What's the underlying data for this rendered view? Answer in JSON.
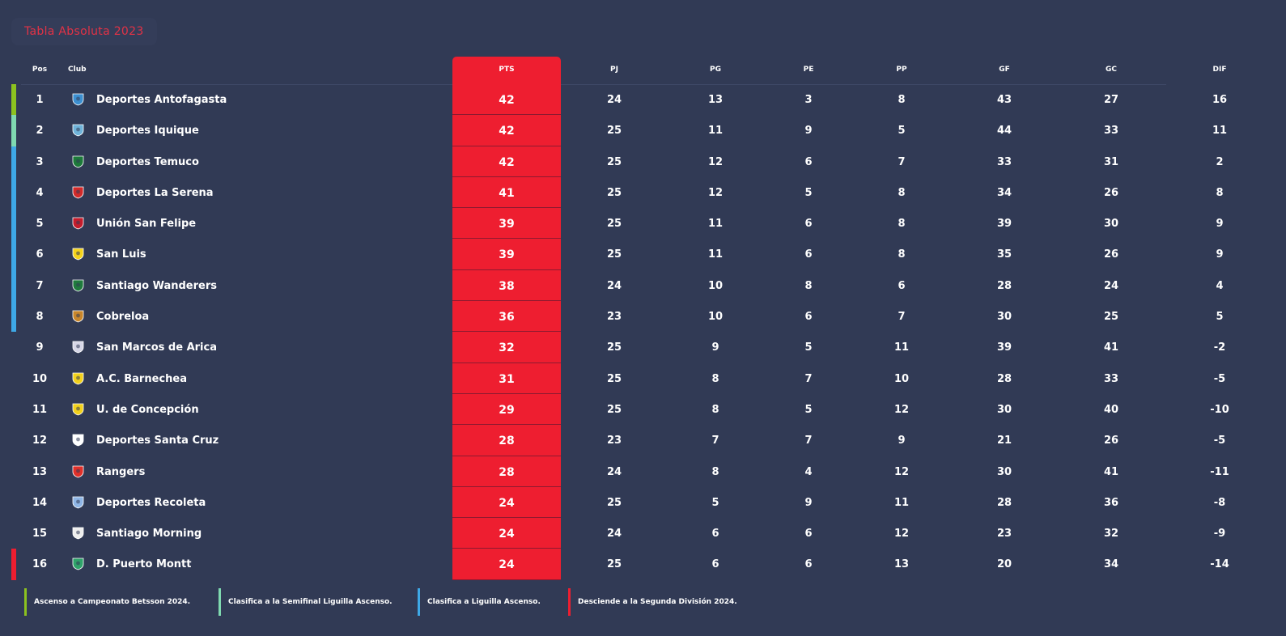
{
  "title": "Tabla Absoluta 2023",
  "headers": {
    "pos": "Pos",
    "club": "Club",
    "pts": "PTS",
    "pj": "PJ",
    "pg": "PG",
    "pe": "PE",
    "pp": "PP",
    "gf": "GF",
    "gc": "GC",
    "dif": "DIF"
  },
  "colors": {
    "accent": "#ee1e30",
    "background": "#313a55",
    "zone_ascenso": "#8cc21f",
    "zone_semifinal": "#7fd9b0",
    "zone_liguilla": "#3ea8e6",
    "zone_descenso": "#ee1e30"
  },
  "rows": [
    {
      "pos": "1",
      "club": "Deportes Antofagasta",
      "icon": "deportes-antofagasta-crest-icon",
      "pts": "42",
      "pj": "24",
      "pg": "13",
      "pe": "3",
      "pp": "8",
      "gf": "43",
      "gc": "27",
      "dif": "16",
      "zone": "ascenso"
    },
    {
      "pos": "2",
      "club": "Deportes Iquique",
      "icon": "deportes-iquique-crest-icon",
      "pts": "42",
      "pj": "25",
      "pg": "11",
      "pe": "9",
      "pp": "5",
      "gf": "44",
      "gc": "33",
      "dif": "11",
      "zone": "semifinal"
    },
    {
      "pos": "3",
      "club": "Deportes Temuco",
      "icon": "deportes-temuco-crest-icon",
      "pts": "42",
      "pj": "25",
      "pg": "12",
      "pe": "6",
      "pp": "7",
      "gf": "33",
      "gc": "31",
      "dif": "2",
      "zone": "liguilla"
    },
    {
      "pos": "4",
      "club": "Deportes La Serena",
      "icon": "deportes-la-serena-crest-icon",
      "pts": "41",
      "pj": "25",
      "pg": "12",
      "pe": "5",
      "pp": "8",
      "gf": "34",
      "gc": "26",
      "dif": "8",
      "zone": "liguilla"
    },
    {
      "pos": "5",
      "club": "Unión San Felipe",
      "icon": "union-san-felipe-crest-icon",
      "pts": "39",
      "pj": "25",
      "pg": "11",
      "pe": "6",
      "pp": "8",
      "gf": "39",
      "gc": "30",
      "dif": "9",
      "zone": "liguilla"
    },
    {
      "pos": "6",
      "club": "San Luis",
      "icon": "san-luis-crest-icon",
      "pts": "39",
      "pj": "25",
      "pg": "11",
      "pe": "6",
      "pp": "8",
      "gf": "35",
      "gc": "26",
      "dif": "9",
      "zone": "liguilla"
    },
    {
      "pos": "7",
      "club": "Santiago Wanderers",
      "icon": "santiago-wanderers-crest-icon",
      "pts": "38",
      "pj": "24",
      "pg": "10",
      "pe": "8",
      "pp": "6",
      "gf": "28",
      "gc": "24",
      "dif": "4",
      "zone": "liguilla"
    },
    {
      "pos": "8",
      "club": "Cobreloa",
      "icon": "cobreloa-crest-icon",
      "pts": "36",
      "pj": "23",
      "pg": "10",
      "pe": "6",
      "pp": "7",
      "gf": "30",
      "gc": "25",
      "dif": "5",
      "zone": "liguilla"
    },
    {
      "pos": "9",
      "club": "San Marcos de Arica",
      "icon": "san-marcos-de-arica-crest-icon",
      "pts": "32",
      "pj": "25",
      "pg": "9",
      "pe": "5",
      "pp": "11",
      "gf": "39",
      "gc": "41",
      "dif": "-2",
      "zone": ""
    },
    {
      "pos": "10",
      "club": "A.C. Barnechea",
      "icon": "ac-barnechea-crest-icon",
      "pts": "31",
      "pj": "25",
      "pg": "8",
      "pe": "7",
      "pp": "10",
      "gf": "28",
      "gc": "33",
      "dif": "-5",
      "zone": ""
    },
    {
      "pos": "11",
      "club": "U. de Concepción",
      "icon": "u-de-concepcion-crest-icon",
      "pts": "29",
      "pj": "25",
      "pg": "8",
      "pe": "5",
      "pp": "12",
      "gf": "30",
      "gc": "40",
      "dif": "-10",
      "zone": ""
    },
    {
      "pos": "12",
      "club": "Deportes Santa Cruz",
      "icon": "deportes-santa-cruz-crest-icon",
      "pts": "28",
      "pj": "23",
      "pg": "7",
      "pe": "7",
      "pp": "9",
      "gf": "21",
      "gc": "26",
      "dif": "-5",
      "zone": ""
    },
    {
      "pos": "13",
      "club": "Rangers",
      "icon": "rangers-crest-icon",
      "pts": "28",
      "pj": "24",
      "pg": "8",
      "pe": "4",
      "pp": "12",
      "gf": "30",
      "gc": "41",
      "dif": "-11",
      "zone": ""
    },
    {
      "pos": "14",
      "club": "Deportes Recoleta",
      "icon": "deportes-recoleta-crest-icon",
      "pts": "24",
      "pj": "25",
      "pg": "5",
      "pe": "9",
      "pp": "11",
      "gf": "28",
      "gc": "36",
      "dif": "-8",
      "zone": ""
    },
    {
      "pos": "15",
      "club": "Santiago Morning",
      "icon": "santiago-morning-crest-icon",
      "pts": "24",
      "pj": "24",
      "pg": "6",
      "pe": "6",
      "pp": "12",
      "gf": "23",
      "gc": "32",
      "dif": "-9",
      "zone": ""
    },
    {
      "pos": "16",
      "club": "D. Puerto Montt",
      "icon": "d-puerto-montt-crest-icon",
      "pts": "24",
      "pj": "25",
      "pg": "6",
      "pe": "6",
      "pp": "13",
      "gf": "20",
      "gc": "34",
      "dif": "-14",
      "zone": "descenso"
    }
  ],
  "legend": [
    {
      "label": "Ascenso a Campeonato Betsson 2024.",
      "zone": "ascenso"
    },
    {
      "label": "Clasifica a la Semifinal Liguilla Ascenso.",
      "zone": "semifinal"
    },
    {
      "label": "Clasifica a Liguilla Ascenso.",
      "zone": "liguilla"
    },
    {
      "label": "Desciende a la Segunda División 2024.",
      "zone": "descenso"
    }
  ]
}
